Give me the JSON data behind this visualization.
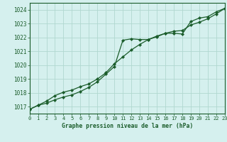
{
  "title": "Graphe pression niveau de la mer (hPa)",
  "background_color": "#d5f0ee",
  "grid_color": "#b0d8d0",
  "line_color1": "#1a5c2a",
  "line_color2": "#1a5c2a",
  "xlim": [
    0,
    23
  ],
  "ylim": [
    1016.5,
    1024.5
  ],
  "yticks": [
    1017,
    1018,
    1019,
    1020,
    1021,
    1022,
    1023,
    1024
  ],
  "xticks": [
    0,
    1,
    2,
    3,
    4,
    5,
    6,
    7,
    8,
    9,
    10,
    11,
    12,
    13,
    14,
    15,
    16,
    17,
    18,
    19,
    20,
    21,
    22,
    23
  ],
  "series1_x": [
    0,
    1,
    2,
    3,
    4,
    5,
    6,
    7,
    8,
    9,
    10,
    11,
    12,
    13,
    14,
    15,
    16,
    17,
    18,
    19,
    20,
    21,
    22,
    23
  ],
  "series1_y": [
    1016.8,
    1017.1,
    1017.25,
    1017.5,
    1017.7,
    1017.85,
    1018.1,
    1018.4,
    1018.8,
    1019.35,
    1019.9,
    1021.8,
    1021.9,
    1021.85,
    1021.85,
    1022.05,
    1022.3,
    1022.3,
    1022.25,
    1023.15,
    1023.4,
    1023.5,
    1023.85,
    1024.1
  ],
  "series2_x": [
    0,
    1,
    2,
    3,
    4,
    5,
    6,
    7,
    8,
    9,
    10,
    11,
    12,
    13,
    14,
    15,
    16,
    17,
    18,
    19,
    20,
    21,
    22,
    23
  ],
  "series2_y": [
    1016.8,
    1017.1,
    1017.4,
    1017.8,
    1018.05,
    1018.2,
    1018.45,
    1018.65,
    1019.0,
    1019.45,
    1020.1,
    1020.6,
    1021.1,
    1021.5,
    1021.85,
    1022.1,
    1022.3,
    1022.45,
    1022.5,
    1022.9,
    1023.1,
    1023.35,
    1023.7,
    1024.1
  ]
}
